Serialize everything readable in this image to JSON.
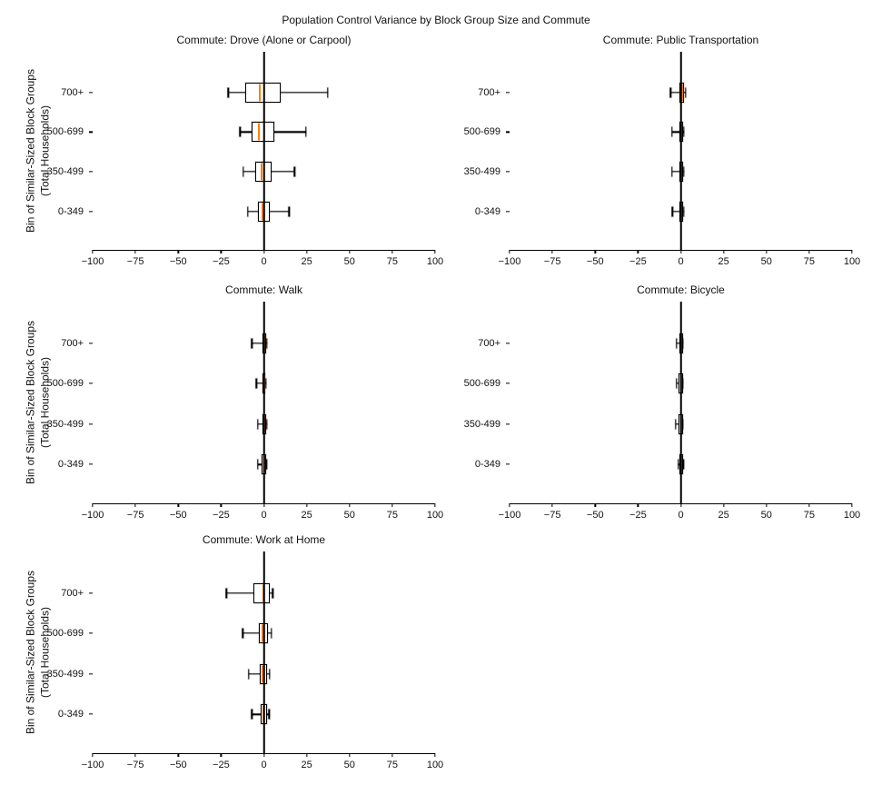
{
  "figure": {
    "title": "Population Control Variance by Block Group Size and Commute",
    "ylabel_line1": "Bin of Similar-Sized Block Groups",
    "ylabel_line2": "(Total Households)",
    "colors": {
      "median": "#ff7f0e",
      "box_edge": "#000000",
      "zero_line": "#000000",
      "background": "#ffffff"
    }
  },
  "chart_data": [
    {
      "type": "boxplot-horizontal",
      "title": "Commute: Drove (Alone or Carpool)",
      "grid": {
        "row": 0,
        "col": 0
      },
      "xlim": [
        -100,
        100
      ],
      "xticks": [
        -100,
        -75,
        -50,
        -25,
        0,
        25,
        50,
        75,
        100
      ],
      "xtick_labels": [
        "−100",
        "−75",
        "−50",
        "−25",
        "0",
        "25",
        "50",
        "75",
        "100"
      ],
      "categories": [
        "700+",
        "500-699",
        "350-499",
        "0-349"
      ],
      "boxes": [
        {
          "category": "700+",
          "whislo": -20.7,
          "q1": -10.8,
          "med": -2.6,
          "q3": 9.9,
          "whishi": 37.4
        },
        {
          "category": "500-699",
          "whislo": -14.0,
          "q1": -7.1,
          "med": -3.0,
          "q3": 6.0,
          "whishi": 24.7
        },
        {
          "category": "350-499",
          "whislo": -12.1,
          "q1": -5.2,
          "med": -1.2,
          "q3": 4.6,
          "whishi": 17.9
        },
        {
          "category": "0-349",
          "whislo": -9.4,
          "q1": -3.6,
          "med": -0.9,
          "q3": 3.5,
          "whishi": 14.7
        }
      ]
    },
    {
      "type": "boxplot-horizontal",
      "title": "Commute: Public Transportation",
      "grid": {
        "row": 0,
        "col": 1
      },
      "xlim": [
        -100,
        100
      ],
      "xticks": [
        -100,
        -75,
        -50,
        -25,
        0,
        25,
        50,
        75,
        100
      ],
      "xtick_labels": [
        "−100",
        "−75",
        "−50",
        "−25",
        "0",
        "25",
        "50",
        "75",
        "100"
      ],
      "categories": [
        "700+",
        "500-699",
        "350-499",
        "0-349"
      ],
      "boxes": [
        {
          "category": "700+",
          "whislo": -5.9,
          "q1": -0.6,
          "med": 0.8,
          "q3": 1.9,
          "whishi": 2.9
        },
        {
          "category": "500-699",
          "whislo": -5.2,
          "q1": -0.6,
          "med": 0.4,
          "q3": 1.2,
          "whishi": 1.7
        },
        {
          "category": "350-499",
          "whislo": -5.2,
          "q1": -0.6,
          "med": 0.4,
          "q3": 1.2,
          "whishi": 1.7
        },
        {
          "category": "0-349",
          "whislo": -4.9,
          "q1": -1.0,
          "med": 0.3,
          "q3": 1.3,
          "whishi": 1.7
        }
      ]
    },
    {
      "type": "boxplot-horizontal",
      "title": "Commute: Walk",
      "grid": {
        "row": 1,
        "col": 0
      },
      "xlim": [
        -100,
        100
      ],
      "xticks": [
        -100,
        -75,
        -50,
        -25,
        0,
        25,
        50,
        75,
        100
      ],
      "xtick_labels": [
        "−100",
        "−75",
        "−50",
        "−25",
        "0",
        "25",
        "50",
        "75",
        "100"
      ],
      "categories": [
        "700+",
        "500-699",
        "350-499",
        "0-349"
      ],
      "boxes": [
        {
          "category": "700+",
          "whislo": -6.9,
          "q1": -0.9,
          "med": 0.2,
          "q3": 1.2,
          "whishi": 1.8
        },
        {
          "category": "500-699",
          "whislo": -4.4,
          "q1": -0.9,
          "med": 0.0,
          "q3": 0.9,
          "whishi": 1.2
        },
        {
          "category": "350-499",
          "whislo": -3.7,
          "q1": -0.9,
          "med": 0.1,
          "q3": 1.1,
          "whishi": 1.6
        },
        {
          "category": "0-349",
          "whislo": -3.5,
          "q1": -1.1,
          "med": 0.0,
          "q3": 1.1,
          "whishi": 1.5
        }
      ]
    },
    {
      "type": "boxplot-horizontal",
      "title": "Commute: Bicycle",
      "grid": {
        "row": 1,
        "col": 1
      },
      "xlim": [
        -100,
        100
      ],
      "xticks": [
        -100,
        -75,
        -50,
        -25,
        0,
        25,
        50,
        75,
        100
      ],
      "xtick_labels": [
        "−100",
        "−75",
        "−50",
        "−25",
        "0",
        "25",
        "50",
        "75",
        "100"
      ],
      "categories": [
        "700+",
        "500-699",
        "350-499",
        "0-349"
      ],
      "boxes": [
        {
          "category": "700+",
          "whislo": -2.5,
          "q1": -0.9,
          "med": 0.2,
          "q3": 1.3,
          "whishi": 1.3
        },
        {
          "category": "500-699",
          "whislo": -2.5,
          "q1": -1.1,
          "med": 0.1,
          "q3": 1.3,
          "whishi": 1.3
        },
        {
          "category": "350-499",
          "whislo": -3.0,
          "q1": -1.2,
          "med": 0.0,
          "q3": 1.1,
          "whishi": 1.1
        },
        {
          "category": "0-349",
          "whislo": -1.4,
          "q1": -0.7,
          "med": 0.3,
          "q3": 1.4,
          "whishi": 1.4
        }
      ]
    },
    {
      "type": "boxplot-horizontal",
      "title": "Commute: Work at Home",
      "grid": {
        "row": 2,
        "col": 0
      },
      "xlim": [
        -100,
        100
      ],
      "xticks": [
        -100,
        -75,
        -50,
        -25,
        0,
        25,
        50,
        75,
        100
      ],
      "xtick_labels": [
        "−100",
        "−75",
        "−50",
        "−25",
        "0",
        "25",
        "50",
        "75",
        "100"
      ],
      "categories": [
        "700+",
        "500-699",
        "350-499",
        "0-349"
      ],
      "boxes": [
        {
          "category": "700+",
          "whislo": -21.9,
          "q1": -6.2,
          "med": -0.5,
          "q3": 3.7,
          "whishi": 5.2
        },
        {
          "category": "500-699",
          "whislo": -12.4,
          "q1": -2.8,
          "med": -0.7,
          "q3": 2.5,
          "whishi": 4.5
        },
        {
          "category": "350-499",
          "whislo": -8.9,
          "q1": -2.6,
          "med": -0.6,
          "q3": 2.1,
          "whishi": 3.4
        },
        {
          "category": "0-349",
          "whislo": -7.1,
          "q1": -1.9,
          "med": -0.3,
          "q3": 1.6,
          "whishi": 3.0
        }
      ]
    }
  ]
}
